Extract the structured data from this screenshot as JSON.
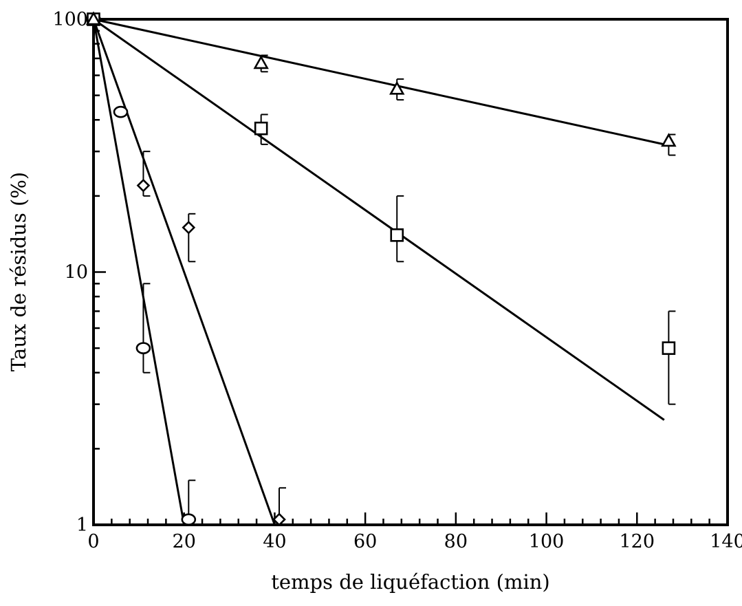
{
  "chart_data": {
    "type": "scatter",
    "title": "",
    "xlabel": "temps de liquéfaction (min)",
    "ylabel": "Taux de résidus (%)",
    "xlim": [
      0,
      140
    ],
    "ylim": [
      1,
      100
    ],
    "yscale": "log",
    "grid": false,
    "legend": "none",
    "x_ticks": [
      "0",
      "20",
      "40",
      "60",
      "80",
      "100",
      "120",
      "140"
    ],
    "y_ticks": [
      "1",
      "10",
      "100"
    ],
    "series": [
      {
        "marker": "circle",
        "points": [
          {
            "x": 0,
            "y": 100
          },
          {
            "x": 6,
            "y": 43
          },
          {
            "x": 11,
            "y": 5,
            "err_low": 4,
            "err_high": 9
          },
          {
            "x": 21,
            "y": 1.05,
            "err_low": 1,
            "err_high": 1.5
          }
        ],
        "fit": [
          {
            "x": 0,
            "y": 100
          },
          {
            "x": 20,
            "y": 1
          }
        ]
      },
      {
        "marker": "diamond",
        "points": [
          {
            "x": 0,
            "y": 100
          },
          {
            "x": 11,
            "y": 22,
            "err_low": 20,
            "err_high": 30
          },
          {
            "x": 21,
            "y": 15,
            "err_low": 11,
            "err_high": 17
          },
          {
            "x": 41,
            "y": 1.05,
            "err_low": 1,
            "err_high": 1.4
          }
        ],
        "fit": [
          {
            "x": 0,
            "y": 100
          },
          {
            "x": 40,
            "y": 1
          }
        ]
      },
      {
        "marker": "square",
        "points": [
          {
            "x": 0,
            "y": 100
          },
          {
            "x": 37,
            "y": 37,
            "err_low": 32,
            "err_high": 42
          },
          {
            "x": 67,
            "y": 14,
            "err_low": 11,
            "err_high": 20
          },
          {
            "x": 127,
            "y": 5,
            "err_low": 3,
            "err_high": 7
          }
        ],
        "fit": [
          {
            "x": 0,
            "y": 100
          },
          {
            "x": 126,
            "y": 2.6
          }
        ]
      },
      {
        "marker": "triangle",
        "points": [
          {
            "x": 0,
            "y": 100
          },
          {
            "x": 37,
            "y": 67,
            "err_low": 62,
            "err_high": 72
          },
          {
            "x": 67,
            "y": 53,
            "err_low": 48,
            "err_high": 58
          },
          {
            "x": 127,
            "y": 33,
            "err_low": 29,
            "err_high": 35
          }
        ],
        "fit": [
          {
            "x": 0,
            "y": 100
          },
          {
            "x": 126,
            "y": 32
          }
        ]
      }
    ]
  }
}
